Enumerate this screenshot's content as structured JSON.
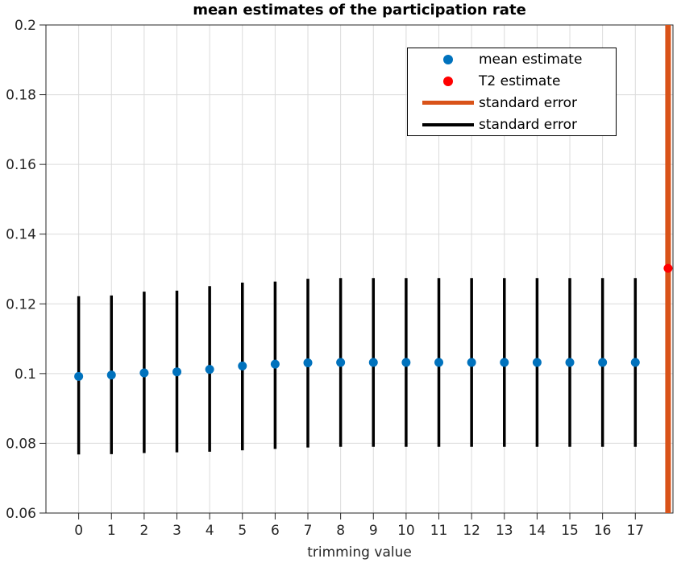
{
  "figure": {
    "title": "mean estimates of the participation rate",
    "xlabel": "trimming value"
  },
  "legend": {
    "position": "upper right",
    "entries": [
      {
        "label": "mean estimate",
        "marker": "dot",
        "color": "#0072BD"
      },
      {
        "label": "T2 estimate",
        "marker": "dot",
        "color": "#FF0000"
      },
      {
        "label": "standard error",
        "marker": "line",
        "color": "#D95319"
      },
      {
        "label": "standard error",
        "marker": "line",
        "color": "#000000"
      }
    ]
  },
  "chart_data": {
    "type": "scatter",
    "title": "mean estimates of the participation rate",
    "xlabel": "trimming value",
    "ylabel": "",
    "xlim": [
      -1,
      18.15
    ],
    "ylim": [
      0.06,
      0.2
    ],
    "grid": true,
    "legend_position": "upper right",
    "xticks": [
      0,
      1,
      2,
      3,
      4,
      5,
      6,
      7,
      8,
      9,
      10,
      11,
      12,
      13,
      14,
      15,
      16,
      17
    ],
    "yticks": [
      {
        "value": 0.06,
        "label": "0.06"
      },
      {
        "value": 0.08,
        "label": "0.08"
      },
      {
        "value": 0.1,
        "label": "0.1"
      },
      {
        "value": 0.12,
        "label": "0.12"
      },
      {
        "value": 0.14,
        "label": "0.14"
      },
      {
        "value": 0.16,
        "label": "0.16"
      },
      {
        "value": 0.18,
        "label": "0.18"
      },
      {
        "value": 0.2,
        "label": "0.2"
      }
    ],
    "style": {
      "grid_color": "#DBDBDB",
      "axis_color": "#262626",
      "background": "#FFFFFF"
    },
    "series": [
      {
        "name": "standard error (T2 estimate)",
        "type": "vline",
        "color": "#D95319",
        "x": [
          18
        ],
        "low": [
          0.06
        ],
        "high": [
          0.2
        ],
        "note": "clipped to axis limits"
      },
      {
        "name": "standard error (mean estimate)",
        "type": "errorbar",
        "color": "#000000",
        "x": [
          0,
          1,
          2,
          3,
          4,
          5,
          6,
          7,
          8,
          9,
          10,
          11,
          12,
          13,
          14,
          15,
          16,
          17
        ],
        "low": [
          0.0768,
          0.0769,
          0.0772,
          0.0774,
          0.0776,
          0.078,
          0.0784,
          0.0788,
          0.079,
          0.079,
          0.079,
          0.079,
          0.079,
          0.079,
          0.079,
          0.079,
          0.079,
          0.079
        ],
        "high": [
          0.1222,
          0.1224,
          0.1235,
          0.1238,
          0.1251,
          0.1261,
          0.1264,
          0.1272,
          0.1274,
          0.1274,
          0.1274,
          0.1274,
          0.1274,
          0.1274,
          0.1274,
          0.1274,
          0.1274,
          0.1274
        ]
      },
      {
        "name": "mean estimate",
        "type": "scatter",
        "color": "#0072BD",
        "x": [
          0,
          1,
          2,
          3,
          4,
          5,
          6,
          7,
          8,
          9,
          10,
          11,
          12,
          13,
          14,
          15,
          16,
          17
        ],
        "y": [
          0.0992,
          0.0996,
          0.1002,
          0.1005,
          0.1012,
          0.1022,
          0.1027,
          0.1031,
          0.1032,
          0.1032,
          0.1032,
          0.1032,
          0.1032,
          0.1032,
          0.1032,
          0.1032,
          0.1032,
          0.1032
        ]
      },
      {
        "name": "T2 estimate",
        "type": "scatter",
        "color": "#FF0000",
        "x": [
          18
        ],
        "y": [
          0.1302
        ]
      }
    ]
  }
}
